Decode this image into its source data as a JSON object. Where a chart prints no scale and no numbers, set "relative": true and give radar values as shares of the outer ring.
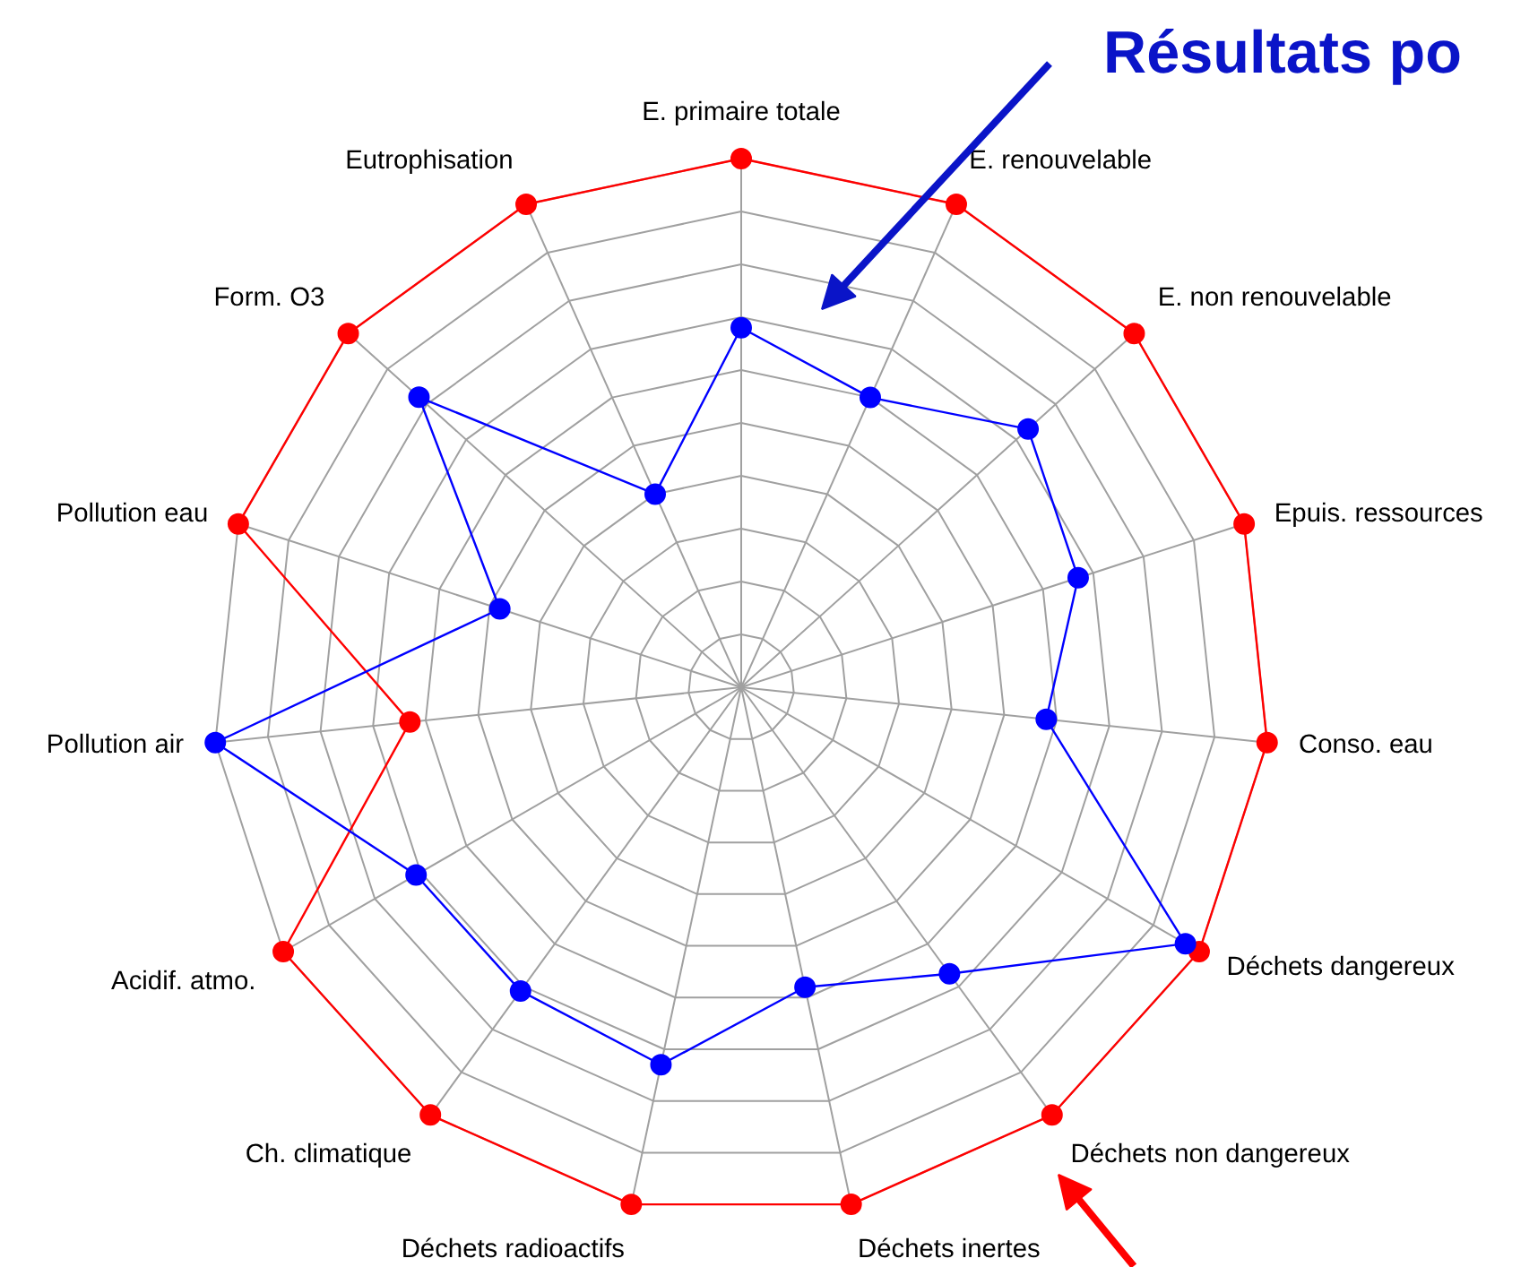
{
  "chart_data": {
    "type": "radar",
    "title": "Résultats po",
    "relative": true,
    "marker": "circle",
    "categories": [
      "E. primaire totale",
      "E. renouvelable",
      "E. non renouvelable",
      "Epuis. ressources",
      "Conso. eau",
      "Déchets dangereux",
      "Déchets non dangereux",
      "Déchets inertes",
      "Déchets radioactifs",
      "Ch. climatique",
      "Acidif. atmo.",
      "Pollution air",
      "Pollution eau",
      "Form. O3",
      "Eutrophisation"
    ],
    "series": [
      {
        "color": "#ff0000",
        "values": [
          1,
          1,
          1,
          1,
          1,
          1,
          1,
          1,
          1,
          1,
          1,
          0.63,
          1,
          1,
          1
        ]
      },
      {
        "color": "#0000ff",
        "values": [
          0.68,
          0.6,
          0.73,
          0.67,
          0.58,
          0.97,
          0.67,
          0.58,
          0.73,
          0.71,
          0.71,
          1.0,
          0.48,
          0.82,
          0.4
        ]
      }
    ]
  }
}
